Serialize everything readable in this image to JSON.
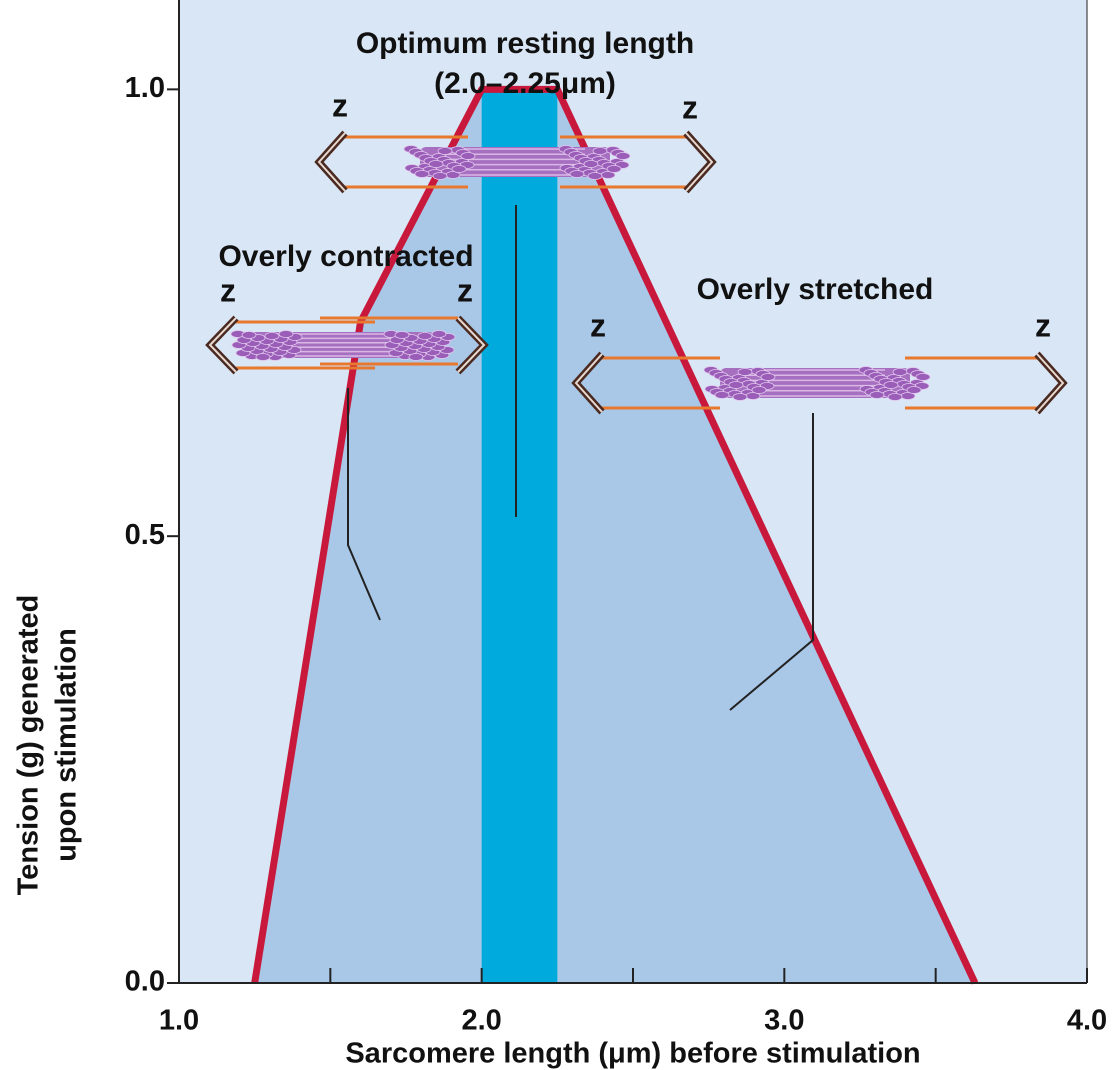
{
  "chart_data": {
    "type": "area",
    "x_label": "Sarcomere length (μm) before stimulation",
    "y_label": [
      "Tension (g) generated",
      "upon stimulation"
    ],
    "x": [
      1.25,
      1.6,
      2.0,
      2.25,
      3.63
    ],
    "values": [
      0,
      0.74,
      1.0,
      1.0,
      0
    ],
    "color": "#c8193c",
    "fill_color": "#a9c8e8",
    "background": "#d9e6f5",
    "band": {
      "range": [
        2.0,
        2.25
      ],
      "value": 1.0,
      "color": "#00aadc"
    },
    "xlim": [
      1.0,
      4.0
    ],
    "ylim": [
      0,
      1.1
    ],
    "xticks": [
      {
        "value": 1,
        "label": "1.0"
      },
      {
        "value": 2,
        "label": "2.0"
      },
      {
        "value": 3,
        "label": "3.0"
      },
      {
        "value": 4,
        "label": "4.0"
      }
    ],
    "xminor_ticks": [
      1.5,
      2.5,
      3.5
    ],
    "yticks": [
      {
        "value": 0,
        "label": "0.0"
      },
      0.5,
      {
        "value": 1,
        "label": "1.0"
      }
    ],
    "annotations": {
      "optimum": [
        "Optimum resting length",
        "(2.0–2.25μm)"
      ],
      "contracted": "Overly contracted",
      "stretched": "Overly stretched",
      "z_labels": [
        "z",
        "z",
        "z",
        "z",
        "z",
        "z"
      ]
    }
  }
}
